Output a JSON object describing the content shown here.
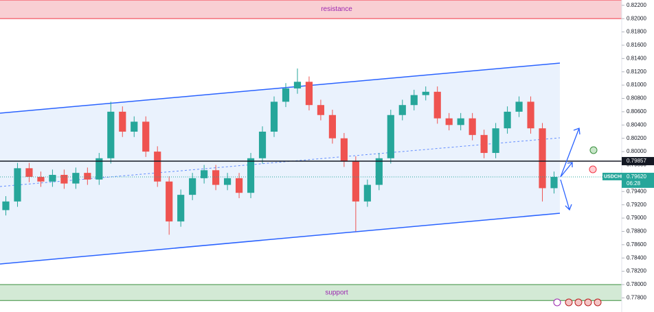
{
  "chart_data": {
    "type": "candlestick",
    "series": [
      {
        "up_color": "#26a69a",
        "down_color": "#ef5350",
        "open": [
          0.7912,
          0.7925,
          0.7975,
          0.7962,
          0.7955,
          0.7965,
          0.7952,
          0.7968,
          0.7958,
          0.799,
          0.806,
          0.803,
          0.8045,
          0.8,
          0.7955,
          0.7895,
          0.7935,
          0.796,
          0.7972,
          0.795,
          0.796,
          0.7938,
          0.799,
          0.803,
          0.8075,
          0.8095,
          0.8105,
          0.807,
          0.8055,
          0.802,
          0.7985,
          0.7925,
          0.795,
          0.799,
          0.8055,
          0.807,
          0.8085,
          0.809,
          0.805,
          0.804,
          0.805,
          0.8025,
          0.7998,
          0.8035,
          0.806,
          0.8075,
          0.8035,
          0.7945
        ],
        "high": [
          0.7933,
          0.7983,
          0.7983,
          0.797,
          0.7973,
          0.7973,
          0.7976,
          0.7976,
          0.7998,
          0.8075,
          0.8068,
          0.8053,
          0.8053,
          0.8008,
          0.7963,
          0.7943,
          0.7968,
          0.798,
          0.798,
          0.7968,
          0.7968,
          0.7998,
          0.8038,
          0.8083,
          0.8103,
          0.8125,
          0.8113,
          0.8078,
          0.8063,
          0.8028,
          0.7993,
          0.7958,
          0.7998,
          0.8063,
          0.8078,
          0.8093,
          0.8098,
          0.8098,
          0.8058,
          0.8058,
          0.8058,
          0.8033,
          0.8043,
          0.8068,
          0.8083,
          0.8083,
          0.8043,
          0.797
        ],
        "low": [
          0.7904,
          0.7917,
          0.7954,
          0.7947,
          0.7947,
          0.7944,
          0.7944,
          0.795,
          0.795,
          0.7982,
          0.8022,
          0.8022,
          0.7992,
          0.7947,
          0.7875,
          0.7887,
          0.7927,
          0.7952,
          0.7942,
          0.7942,
          0.793,
          0.793,
          0.7982,
          0.8022,
          0.8067,
          0.8087,
          0.8062,
          0.8047,
          0.8012,
          0.7977,
          0.788,
          0.7917,
          0.7942,
          0.7982,
          0.8047,
          0.8062,
          0.8077,
          0.8042,
          0.8032,
          0.8032,
          0.8017,
          0.799,
          0.799,
          0.8027,
          0.8052,
          0.8027,
          0.7925,
          0.7937
        ],
        "close": [
          0.7925,
          0.7975,
          0.7962,
          0.7955,
          0.7965,
          0.7952,
          0.7968,
          0.7958,
          0.799,
          0.806,
          0.803,
          0.8045,
          0.8,
          0.7955,
          0.7895,
          0.7935,
          0.796,
          0.7972,
          0.795,
          0.796,
          0.7938,
          0.799,
          0.803,
          0.8075,
          0.8095,
          0.8105,
          0.807,
          0.8055,
          0.802,
          0.7985,
          0.7925,
          0.795,
          0.799,
          0.8055,
          0.807,
          0.8085,
          0.809,
          0.805,
          0.804,
          0.805,
          0.8025,
          0.7998,
          0.8035,
          0.806,
          0.8075,
          0.8035,
          0.7945,
          0.7962
        ]
      }
    ],
    "ylim": [
      0.7766,
      0.8228
    ],
    "yticks": [
      {
        "value": 0.822,
        "label": "0.82200"
      },
      {
        "value": 0.82,
        "label": "0.82000"
      },
      {
        "value": 0.818,
        "label": "0.81800"
      },
      {
        "value": 0.816,
        "label": "0.81600"
      },
      {
        "value": 0.814,
        "label": "0.81400"
      },
      {
        "value": 0.812,
        "label": "0.81200"
      },
      {
        "value": 0.81,
        "label": "0.81000"
      },
      {
        "value": 0.808,
        "label": "0.80800"
      },
      {
        "value": 0.806,
        "label": "0.80600"
      },
      {
        "value": 0.804,
        "label": "0.80400"
      },
      {
        "value": 0.802,
        "label": "0.80200"
      },
      {
        "value": 0.8,
        "label": "0.80000"
      },
      {
        "value": 0.798,
        "label": "0.79800"
      },
      {
        "value": 0.796,
        "label": "0.79600"
      },
      {
        "value": 0.794,
        "label": "0.79400"
      },
      {
        "value": 0.792,
        "label": "0.79200"
      },
      {
        "value": 0.79,
        "label": "0.79000"
      },
      {
        "value": 0.788,
        "label": "0.78800"
      },
      {
        "value": 0.786,
        "label": "0.78600"
      },
      {
        "value": 0.784,
        "label": "0.78400"
      },
      {
        "value": 0.782,
        "label": "0.78200"
      },
      {
        "value": 0.78,
        "label": "0.78000"
      },
      {
        "value": 0.778,
        "label": "0.77800"
      }
    ],
    "zones": [
      {
        "label": "resistance",
        "from": 0.82,
        "to": 0.8228,
        "color": "#f9cfd3",
        "line": "#f23645"
      },
      {
        "label": "support",
        "from": 0.7776,
        "to": 0.78,
        "color": "#d3e9d5",
        "line": "#388e3c"
      }
    ],
    "level": {
      "value": 0.79857,
      "label": "0.79857"
    },
    "last_price": {
      "symbol": "USDCHF",
      "value": 0.7962,
      "label": "0.79620",
      "countdown": "06:28"
    }
  }
}
